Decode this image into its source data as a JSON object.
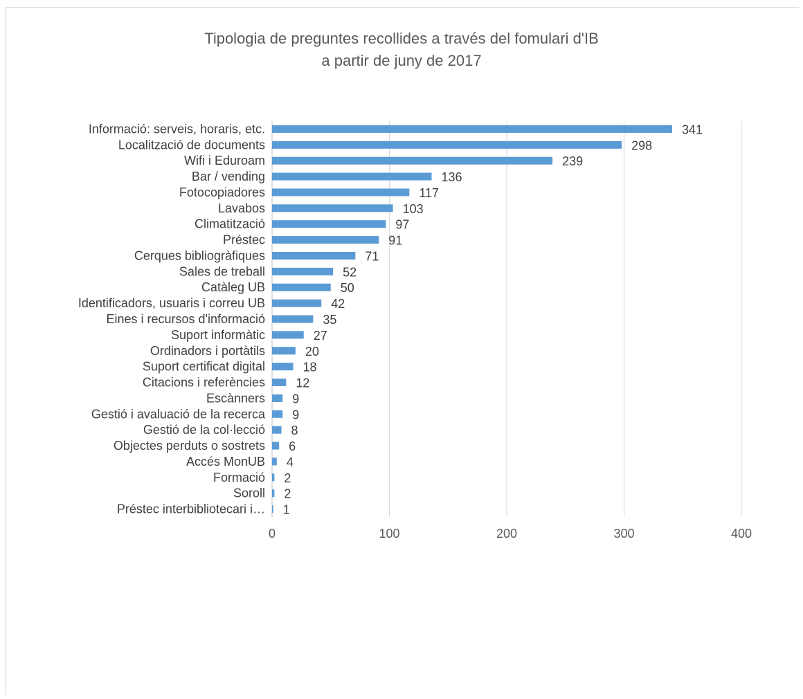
{
  "chart_data": {
    "type": "bar",
    "orientation": "horizontal",
    "title_line1": "Tipologia de preguntes recollides a través del fomulari d'IB",
    "title_line2": "a partir de juny de 2017",
    "xlabel": "",
    "ylabel": "",
    "xlim": [
      0,
      400
    ],
    "x_ticks": [
      "0",
      "100",
      "200",
      "300",
      "400"
    ],
    "grid": true,
    "bar_color": "#5b9bd5",
    "categories": [
      "Informació: serveis, horaris, etc.",
      "Localització de documents",
      "Wifi i Eduroam",
      "Bar / vending",
      "Fotocopiadores",
      "Lavabos",
      "Climatització",
      "Préstec",
      "Cerques bibliogràfiques",
      "Sales de treball",
      "Catàleg UB",
      "Identificadors, usuaris i correu UB",
      "Eines i recursos d'informació",
      "Suport informàtic",
      "Ordinadors i portàtils",
      "Suport certificat digital",
      "Citacions i referències",
      "Escànners",
      "Gestió i avaluació de la recerca",
      "Gestió de la col·lecció",
      "Objectes perduts o sostrets",
      "Accés MonUB",
      "Formació",
      "Soroll",
      "Préstec interbibliotecari i…"
    ],
    "values": [
      341,
      298,
      239,
      136,
      117,
      103,
      97,
      91,
      71,
      52,
      50,
      42,
      35,
      27,
      20,
      18,
      12,
      9,
      9,
      8,
      6,
      4,
      2,
      2,
      1
    ]
  }
}
